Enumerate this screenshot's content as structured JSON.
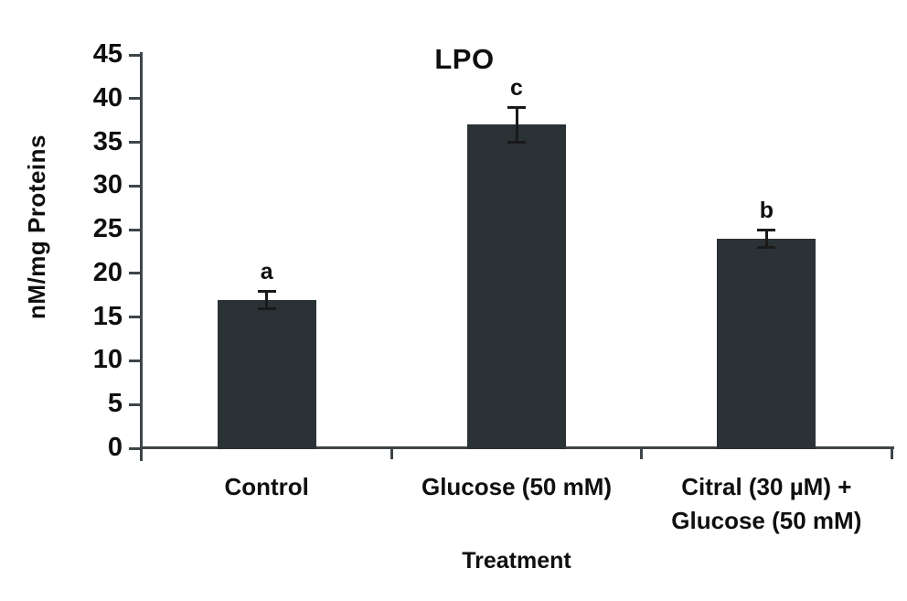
{
  "chart_data": {
    "type": "bar",
    "title": "LPO",
    "xlabel": "Treatment",
    "ylabel": "nM/mg Proteins",
    "categories": [
      "Control",
      "Glucose (50 mM)",
      "Citral (30 µM) +\nGlucose (50 mM)"
    ],
    "values": [
      17,
      37,
      24
    ],
    "error_bars": [
      1,
      2,
      1
    ],
    "significance_letters": [
      "a",
      "c",
      "b"
    ],
    "ylim": [
      0,
      45
    ],
    "ytick_step": 5,
    "ytick_labels": [
      "0",
      "5",
      "10",
      "15",
      "20",
      "25",
      "30",
      "35",
      "40",
      "45"
    ],
    "grid": false,
    "legend": false,
    "bar_color": "#2b3236",
    "axis_color": "#3e4549",
    "error_bar_color": "#1a1a1a",
    "text_color": "#0f0f0f"
  }
}
